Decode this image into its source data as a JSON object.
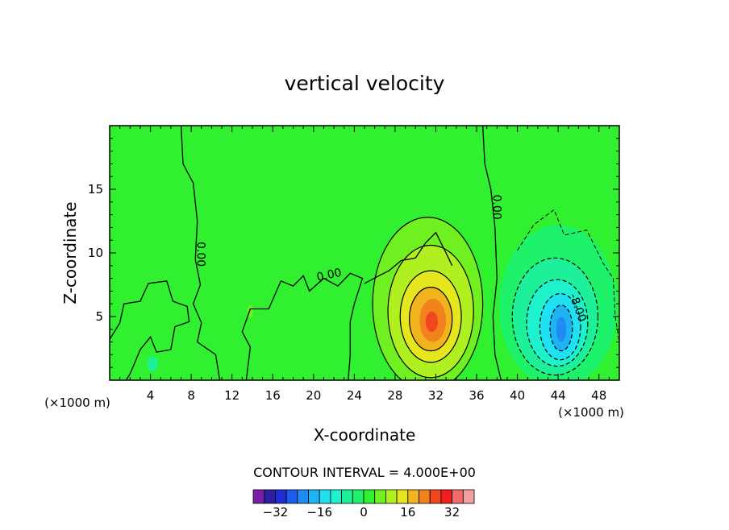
{
  "chart_data": {
    "type": "contour",
    "title": "vertical velocity",
    "xlabel": "X-coordinate",
    "ylabel": "Z-coordinate",
    "x_unit_label": "(×1000 m)",
    "x_unit_label_right": "(×1000 m)",
    "xlim": [
      0,
      50
    ],
    "ylim": [
      0,
      20
    ],
    "xticks": [
      4,
      8,
      12,
      16,
      20,
      24,
      28,
      32,
      36,
      40,
      44,
      48
    ],
    "yticks": [
      5,
      10,
      15
    ],
    "contour_interval_text": "CONTOUR INTERVAL = 4.000E+00",
    "contour_interval": 4,
    "zero_contour_label": "0.00",
    "negative_contour_label": "-8.00",
    "features": [
      {
        "name": "updraft",
        "center_x": 31.5,
        "center_z": 4.8,
        "peak_value": 24
      },
      {
        "name": "downdraft",
        "center_x": 44.2,
        "center_z": 4.2,
        "peak_value": -24
      }
    ],
    "colorbar": {
      "levels": [
        -36,
        -32,
        -28,
        -24,
        -20,
        -16,
        -12,
        -8,
        -4,
        0,
        4,
        8,
        12,
        16,
        20,
        24,
        28,
        32,
        36
      ],
      "tick_labels": [
        "−32",
        "−16",
        "0",
        "16",
        "32"
      ],
      "tick_values": [
        -32,
        -16,
        0,
        16,
        32
      ],
      "colors": [
        "#7a1ea8",
        "#2e1ea0",
        "#1e2ed2",
        "#1e5aee",
        "#1e8cf2",
        "#1eb4f4",
        "#1ee2f2",
        "#1ef2cc",
        "#1ef09a",
        "#1ef26a",
        "#30f030",
        "#70f020",
        "#b0f020",
        "#e6e61e",
        "#f2b41e",
        "#f2821e",
        "#f2461e",
        "#f01e1e",
        "#f26a6a",
        "#f2a0a0"
      ]
    }
  }
}
